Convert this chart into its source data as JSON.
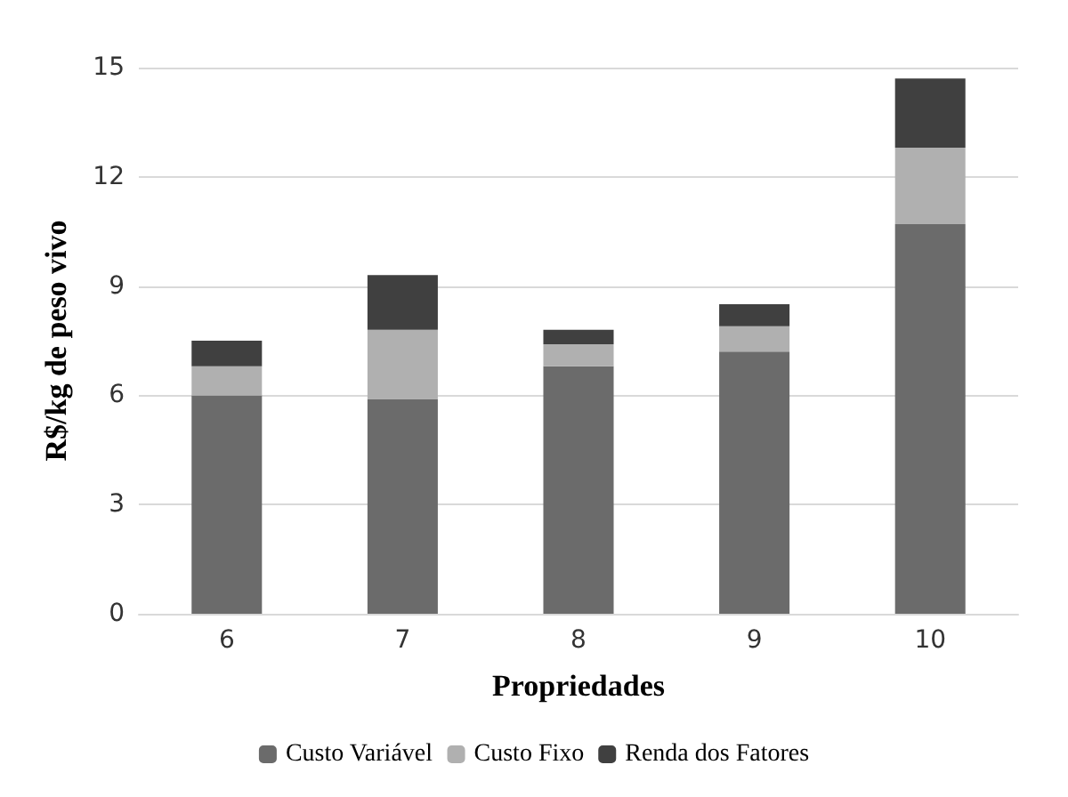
{
  "chart_data": {
    "type": "bar",
    "stacked": true,
    "xlabel": "Propriedades",
    "ylabel": "R$/kg de peso vivo",
    "categories": [
      "6",
      "7",
      "8",
      "9",
      "10"
    ],
    "series": [
      {
        "name": "Custo Variável",
        "color": "#6b6b6b",
        "values": [
          6.0,
          5.9,
          6.8,
          7.2,
          10.7
        ]
      },
      {
        "name": "Custo Fixo",
        "color": "#b0b0b0",
        "values": [
          0.8,
          1.9,
          0.6,
          0.7,
          2.1
        ]
      },
      {
        "name": "Renda dos Fatores",
        "color": "#404040",
        "values": [
          0.7,
          1.5,
          0.4,
          0.6,
          1.9
        ]
      }
    ],
    "ylim": [
      0,
      15
    ],
    "yticks": [
      0,
      3,
      6,
      9,
      12,
      15
    ],
    "grid": "y",
    "legend": "bottom"
  }
}
